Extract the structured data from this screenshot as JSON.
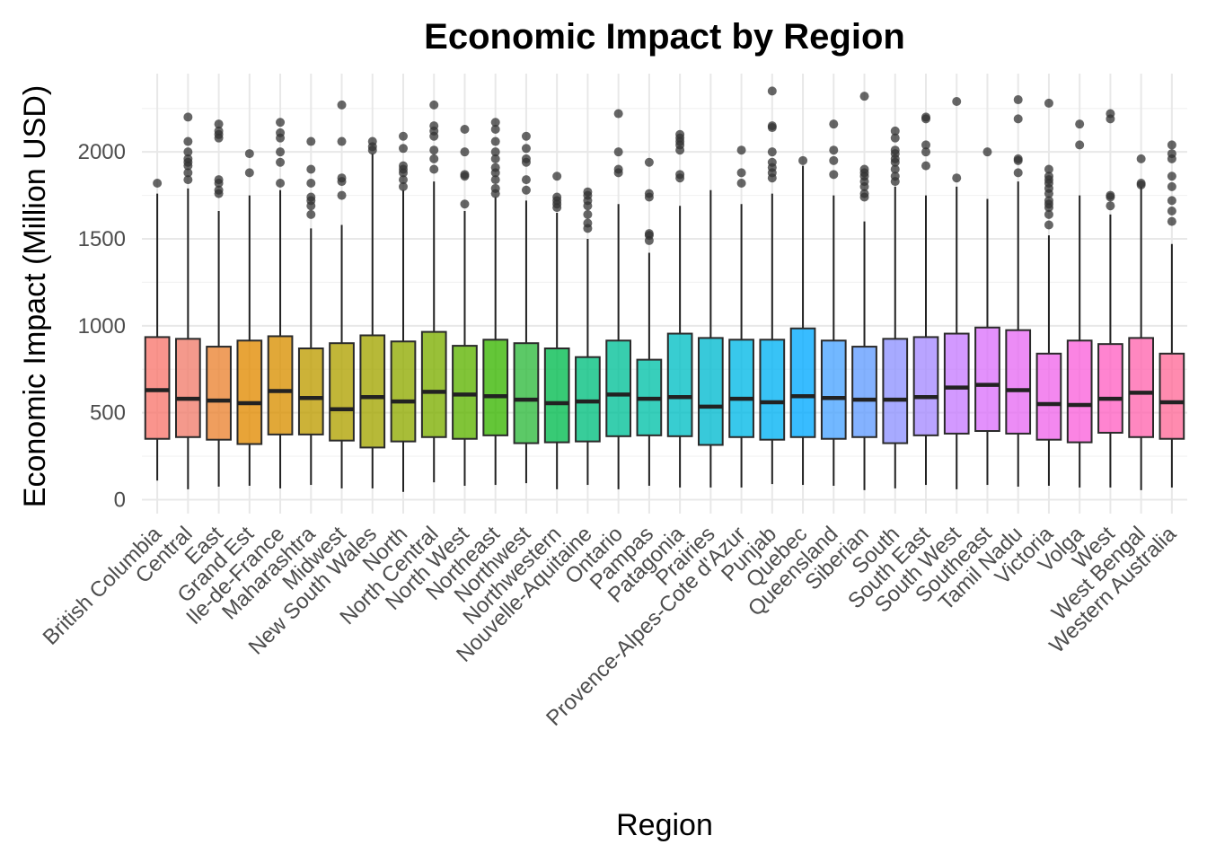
{
  "chart_data": {
    "type": "boxplot",
    "title": "Economic Impact by Region",
    "xlabel": "Region",
    "ylabel": "Economic Impact (Million USD)",
    "ylim": [
      -80,
      2450
    ],
    "yticks": [
      0,
      500,
      1000,
      1500,
      2000
    ],
    "grid": true,
    "legend": "none",
    "categories": [
      "British Columbia",
      "Central",
      "East",
      "Grand Est",
      "Ile-de-France",
      "Maharashtra",
      "Midwest",
      "New South Wales",
      "North",
      "North Central",
      "North West",
      "Northeast",
      "Northwest",
      "Northwestern",
      "Nouvelle-Aquitaine",
      "Ontario",
      "Pampas",
      "Patagonia",
      "Prairies",
      "Provence-Alpes-Cote d'Azur",
      "Punjab",
      "Quebec",
      "Queensland",
      "Siberian",
      "South",
      "South East",
      "South West",
      "Southeast",
      "Tamil Nadu",
      "Victoria",
      "Volga",
      "West",
      "West Bengal",
      "Western Australia"
    ],
    "colors": [
      "#F8766D",
      "#F17C6B",
      "#EA8331",
      "#E18A00",
      "#D89000",
      "#BE9C00",
      "#B0A100",
      "#A3A500",
      "#8FAA00",
      "#7CAE00",
      "#5EB300",
      "#39B600",
      "#2EBA3C",
      "#00BB4E",
      "#00BF7D",
      "#00C097",
      "#00C1A8",
      "#00BFC4",
      "#00BACF",
      "#00B8E7",
      "#00B2F3",
      "#00A9FF",
      "#4AA4FF",
      "#619CFF",
      "#8E92FF",
      "#A58AFF",
      "#C77CFF",
      "#DB72FB",
      "#E76BF3",
      "#F066EA",
      "#FA62DB",
      "#FF61C3",
      "#FF65AE",
      "#FF6A98"
    ],
    "boxes": [
      {
        "min": 110,
        "q1": 350,
        "median": 630,
        "q3": 935,
        "max": 1760,
        "outliers": [
          1820
        ]
      },
      {
        "min": 60,
        "q1": 360,
        "median": 580,
        "q3": 925,
        "max": 1790,
        "outliers": [
          1840,
          1880,
          1920,
          1940,
          1960,
          2000,
          2060,
          2200
        ]
      },
      {
        "min": 75,
        "q1": 345,
        "median": 570,
        "q3": 880,
        "max": 1660,
        "outliers": [
          1760,
          1780,
          1820,
          1840,
          2080,
          2100,
          2120,
          2160
        ]
      },
      {
        "min": 80,
        "q1": 320,
        "median": 555,
        "q3": 915,
        "max": 1750,
        "outliers": [
          1880,
          1990
        ]
      },
      {
        "min": 65,
        "q1": 375,
        "median": 625,
        "q3": 940,
        "max": 1780,
        "outliers": [
          1820,
          1940,
          2000,
          2080,
          2110,
          2170
        ]
      },
      {
        "min": 85,
        "q1": 375,
        "median": 585,
        "q3": 870,
        "max": 1560,
        "outliers": [
          1640,
          1690,
          1720,
          1740,
          1820,
          1900,
          2060
        ]
      },
      {
        "min": 65,
        "q1": 340,
        "median": 520,
        "q3": 900,
        "max": 1580,
        "outliers": [
          1750,
          1830,
          1850,
          2060,
          2270
        ]
      },
      {
        "min": 65,
        "q1": 300,
        "median": 590,
        "q3": 945,
        "max": 1990,
        "outliers": [
          2010,
          2030,
          2060
        ]
      },
      {
        "min": 45,
        "q1": 335,
        "median": 565,
        "q3": 910,
        "max": 1780,
        "outliers": [
          1800,
          1840,
          1880,
          1900,
          1920,
          2020,
          2090
        ]
      },
      {
        "min": 100,
        "q1": 360,
        "median": 620,
        "q3": 965,
        "max": 1830,
        "outliers": [
          1900,
          1960,
          2010,
          2090,
          2120,
          2150,
          2270
        ]
      },
      {
        "min": 80,
        "q1": 350,
        "median": 605,
        "q3": 885,
        "max": 1660,
        "outliers": [
          1700,
          1860,
          1870,
          2000,
          2130
        ]
      },
      {
        "min": 85,
        "q1": 370,
        "median": 595,
        "q3": 920,
        "max": 1740,
        "outliers": [
          1760,
          1790,
          1840,
          1880,
          1910,
          1960,
          2000,
          2060,
          2130,
          2170
        ]
      },
      {
        "min": 95,
        "q1": 325,
        "median": 575,
        "q3": 900,
        "max": 1720,
        "outliers": [
          1780,
          1840,
          1940,
          1960,
          2020,
          2090
        ]
      },
      {
        "min": 60,
        "q1": 330,
        "median": 555,
        "q3": 870,
        "max": 1650,
        "outliers": [
          1680,
          1700,
          1720,
          1740,
          1860
        ]
      },
      {
        "min": 85,
        "q1": 335,
        "median": 565,
        "q3": 820,
        "max": 1500,
        "outliers": [
          1560,
          1590,
          1640,
          1690,
          1720,
          1750,
          1770
        ]
      },
      {
        "min": 60,
        "q1": 365,
        "median": 605,
        "q3": 915,
        "max": 1700,
        "outliers": [
          1880,
          1900,
          2000,
          2220
        ]
      },
      {
        "min": 80,
        "q1": 370,
        "median": 580,
        "q3": 805,
        "max": 1420,
        "outliers": [
          1490,
          1520,
          1530,
          1740,
          1760,
          1940
        ]
      },
      {
        "min": 70,
        "q1": 365,
        "median": 590,
        "q3": 955,
        "max": 1690,
        "outliers": [
          1850,
          1870,
          2010,
          2040,
          2060,
          2080,
          2100
        ]
      },
      {
        "min": 70,
        "q1": 315,
        "median": 535,
        "q3": 930,
        "max": 1780,
        "outliers": []
      },
      {
        "min": 70,
        "q1": 360,
        "median": 580,
        "q3": 920,
        "max": 1700,
        "outliers": [
          1820,
          1880,
          2010
        ]
      },
      {
        "min": 90,
        "q1": 345,
        "median": 560,
        "q3": 920,
        "max": 1760,
        "outliers": [
          1850,
          1880,
          1910,
          1940,
          2000,
          2140,
          2150,
          2350
        ]
      },
      {
        "min": 85,
        "q1": 360,
        "median": 595,
        "q3": 985,
        "max": 1920,
        "outliers": [
          1950
        ]
      },
      {
        "min": 80,
        "q1": 350,
        "median": 585,
        "q3": 915,
        "max": 1750,
        "outliers": [
          1870,
          1950,
          2010,
          2160
        ]
      },
      {
        "min": 55,
        "q1": 360,
        "median": 575,
        "q3": 880,
        "max": 1600,
        "outliers": [
          1740,
          1760,
          1800,
          1830,
          1860,
          1880,
          1900,
          2320
        ]
      },
      {
        "min": 65,
        "q1": 325,
        "median": 575,
        "q3": 925,
        "max": 1800,
        "outliers": [
          1830,
          1860,
          1900,
          1940,
          1960,
          1990,
          2010,
          2080,
          2120
        ]
      },
      {
        "min": 85,
        "q1": 370,
        "median": 590,
        "q3": 935,
        "max": 1750,
        "outliers": [
          1920,
          2000,
          2040,
          2190,
          2200
        ]
      },
      {
        "min": 60,
        "q1": 380,
        "median": 645,
        "q3": 955,
        "max": 1800,
        "outliers": [
          1850,
          2290
        ]
      },
      {
        "min": 85,
        "q1": 395,
        "median": 660,
        "q3": 990,
        "max": 1730,
        "outliers": [
          2000
        ]
      },
      {
        "min": 75,
        "q1": 380,
        "median": 630,
        "q3": 975,
        "max": 1830,
        "outliers": [
          1880,
          1950,
          1960,
          2190,
          2300
        ]
      },
      {
        "min": 80,
        "q1": 345,
        "median": 550,
        "q3": 840,
        "max": 1520,
        "outliers": [
          1580,
          1640,
          1680,
          1700,
          1720,
          1760,
          1790,
          1820,
          1840,
          1860,
          1900,
          2280
        ]
      },
      {
        "min": 70,
        "q1": 330,
        "median": 545,
        "q3": 915,
        "max": 1750,
        "outliers": [
          2040,
          2160
        ]
      },
      {
        "min": 70,
        "q1": 385,
        "median": 580,
        "q3": 895,
        "max": 1640,
        "outliers": [
          1690,
          1740,
          1750,
          2190,
          2220
        ]
      },
      {
        "min": 55,
        "q1": 360,
        "median": 615,
        "q3": 930,
        "max": 1800,
        "outliers": [
          1810,
          1820,
          1960
        ]
      },
      {
        "min": 70,
        "q1": 350,
        "median": 560,
        "q3": 840,
        "max": 1470,
        "outliers": [
          1600,
          1660,
          1720,
          1800,
          1860,
          1960,
          1990,
          2040
        ]
      }
    ]
  }
}
